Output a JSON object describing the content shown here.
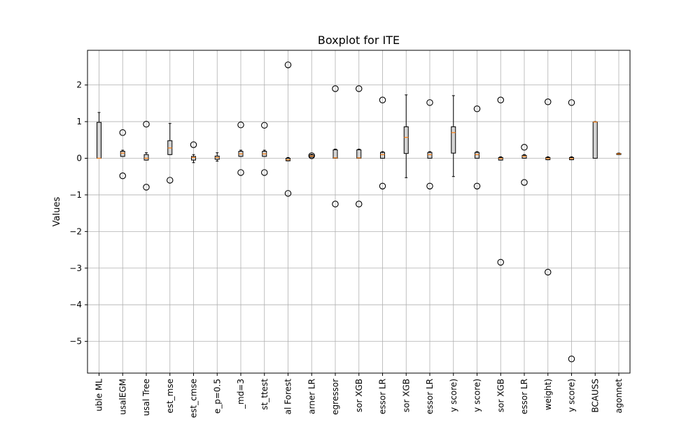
{
  "chart_data": {
    "type": "boxplot",
    "title": "Boxplot for ITE",
    "xlabel": "",
    "ylabel": "Values",
    "ylim": [
      -5.85,
      2.95
    ],
    "yticks": [
      -5,
      -4,
      -3,
      -2,
      -1,
      0,
      1,
      2
    ],
    "ytick_labels": [
      "−5",
      "−4",
      "−3",
      "−2",
      "−1",
      "0",
      "1",
      "2"
    ],
    "grid": true,
    "colors": {
      "box": "#d3d3d3",
      "edge": "#000000",
      "median": "#ff7f0e",
      "grid": "#b0b0b0"
    },
    "categories": [
      "uble ML",
      "usalEGM",
      "usal Tree",
      "est_mse",
      "est_cmse",
      "e_p=0.5",
      "_md=3",
      "st_ttest",
      "al Forest",
      "arner LR",
      "egressor",
      "sor XGB",
      "essor LR",
      "sor XGB",
      "essor LR",
      "y score)",
      "y score)",
      "sor XGB",
      "essor LR",
      "weight)",
      "y score)",
      "BCAUSS",
      "agonnet"
    ],
    "boxes": [
      {
        "whislo": 0.0,
        "q1": 0.0,
        "med": 0.0,
        "q3": 0.98,
        "whishi": 1.25,
        "fliers": []
      },
      {
        "whislo": 0.05,
        "q1": 0.05,
        "med": 0.14,
        "q3": 0.19,
        "whishi": 0.22,
        "fliers": [
          0.7,
          -0.48
        ]
      },
      {
        "whislo": -0.05,
        "q1": -0.05,
        "med": 0.0,
        "q3": 0.1,
        "whishi": 0.15,
        "fliers": [
          0.93,
          -0.79
        ]
      },
      {
        "whislo": 0.1,
        "q1": 0.1,
        "med": 0.28,
        "q3": 0.48,
        "whishi": 0.95,
        "fliers": [
          -0.6
        ]
      },
      {
        "whislo": -0.12,
        "q1": -0.05,
        "med": 0.02,
        "q3": 0.05,
        "whishi": 0.1,
        "fliers": [
          0.37
        ]
      },
      {
        "whislo": -0.08,
        "q1": -0.03,
        "med": 0.02,
        "q3": 0.06,
        "whishi": 0.15,
        "fliers": []
      },
      {
        "whislo": 0.05,
        "q1": 0.05,
        "med": 0.12,
        "q3": 0.19,
        "whishi": 0.22,
        "fliers": [
          0.91,
          -0.39
        ]
      },
      {
        "whislo": 0.05,
        "q1": 0.05,
        "med": 0.12,
        "q3": 0.19,
        "whishi": 0.22,
        "fliers": [
          0.9,
          -0.39
        ]
      },
      {
        "whislo": -0.07,
        "q1": -0.07,
        "med": -0.04,
        "q3": 0.0,
        "whishi": 0.02,
        "fliers": [
          2.55,
          -0.96
        ]
      },
      {
        "whislo": 0.03,
        "q1": 0.03,
        "med": 0.06,
        "q3": 0.09,
        "whishi": 0.11,
        "fliers": [
          0.07
        ]
      },
      {
        "whislo": 0.0,
        "q1": 0.0,
        "med": 0.01,
        "q3": 0.23,
        "whishi": 0.25,
        "fliers": [
          1.9,
          -1.25
        ]
      },
      {
        "whislo": 0.0,
        "q1": 0.0,
        "med": 0.01,
        "q3": 0.23,
        "whishi": 0.25,
        "fliers": [
          1.9,
          -1.25
        ]
      },
      {
        "whislo": 0.0,
        "q1": 0.0,
        "med": 0.1,
        "q3": 0.16,
        "whishi": 0.18,
        "fliers": [
          1.59,
          -0.76
        ]
      },
      {
        "whislo": -0.53,
        "q1": 0.13,
        "med": 0.57,
        "q3": 0.86,
        "whishi": 1.73,
        "fliers": []
      },
      {
        "whislo": 0.0,
        "q1": 0.0,
        "med": 0.1,
        "q3": 0.16,
        "whishi": 0.18,
        "fliers": [
          1.52,
          -0.76
        ]
      },
      {
        "whislo": -0.5,
        "q1": 0.14,
        "med": 0.7,
        "q3": 0.86,
        "whishi": 1.71,
        "fliers": []
      },
      {
        "whislo": 0.0,
        "q1": 0.0,
        "med": 0.1,
        "q3": 0.16,
        "whishi": 0.18,
        "fliers": [
          1.35,
          -0.76
        ]
      },
      {
        "whislo": -0.05,
        "q1": -0.05,
        "med": -0.01,
        "q3": 0.02,
        "whishi": 0.04,
        "fliers": [
          1.59,
          -2.84
        ]
      },
      {
        "whislo": 0.0,
        "q1": 0.0,
        "med": 0.05,
        "q3": 0.08,
        "whishi": 0.1,
        "fliers": [
          0.3,
          -0.66
        ]
      },
      {
        "whislo": -0.04,
        "q1": -0.04,
        "med": -0.01,
        "q3": 0.02,
        "whishi": 0.04,
        "fliers": [
          1.54,
          -3.11
        ]
      },
      {
        "whislo": -0.04,
        "q1": -0.04,
        "med": -0.01,
        "q3": 0.02,
        "whishi": 0.04,
        "fliers": [
          1.52,
          -5.48
        ]
      },
      {
        "whislo": 0.0,
        "q1": 0.0,
        "med": 0.99,
        "q3": 0.99,
        "whishi": 1.0,
        "fliers": []
      },
      {
        "whislo": 0.11,
        "q1": 0.11,
        "med": 0.12,
        "q3": 0.13,
        "whishi": 0.14,
        "fliers": []
      }
    ]
  }
}
